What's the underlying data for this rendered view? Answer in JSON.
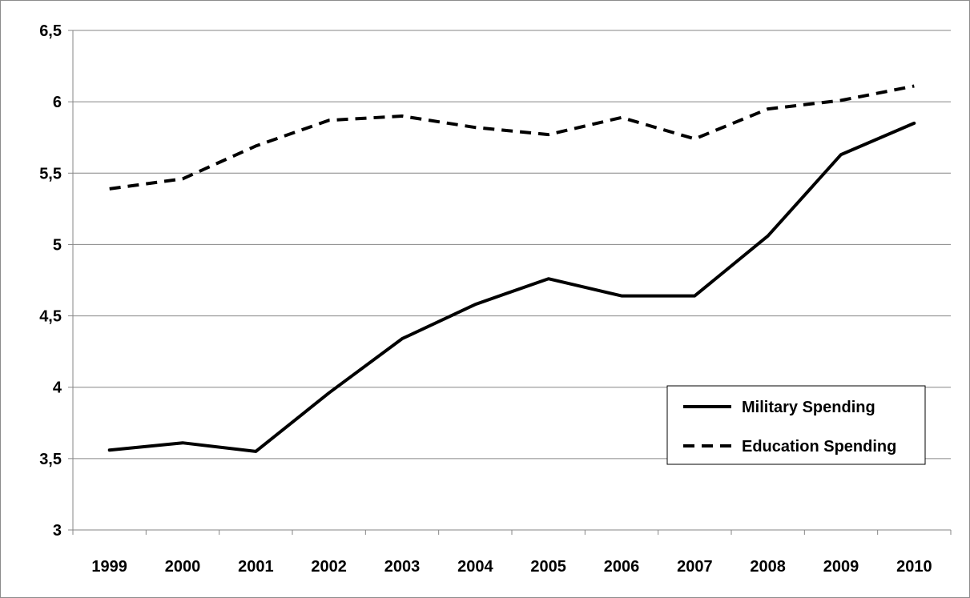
{
  "chart_data": {
    "type": "line",
    "title": "",
    "xlabel": "",
    "ylabel": "",
    "categories": [
      "1999",
      "2000",
      "2001",
      "2002",
      "2003",
      "2004",
      "2005",
      "2006",
      "2007",
      "2008",
      "2009",
      "2010"
    ],
    "series": [
      {
        "name": "Military Spending",
        "style": "solid",
        "values": [
          3.56,
          3.61,
          3.55,
          3.96,
          4.34,
          4.58,
          4.76,
          4.64,
          4.64,
          5.06,
          5.63,
          5.85
        ]
      },
      {
        "name": "Education Spending",
        "style": "dashed",
        "values": [
          5.39,
          5.46,
          5.69,
          5.87,
          5.9,
          5.82,
          5.77,
          5.89,
          5.74,
          5.95,
          6.01,
          6.11
        ]
      }
    ],
    "ylim": [
      3,
      6.5
    ],
    "yticks": [
      "3",
      "3,5",
      "4",
      "4,5",
      "5",
      "5,5",
      "6",
      "6,5"
    ],
    "grid": "horizontal",
    "legend_position": "lower-right"
  },
  "colors": {
    "line": "#000000",
    "grid": "#868686",
    "frame": "#8c8c8c",
    "background": "#ffffff"
  }
}
